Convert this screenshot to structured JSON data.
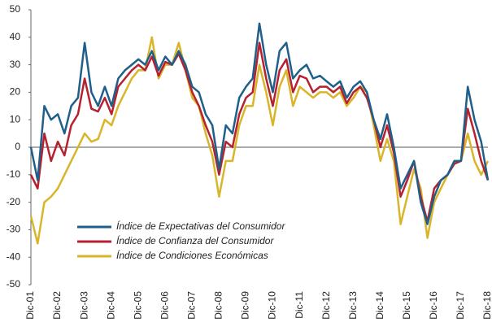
{
  "chart_data": {
    "type": "line",
    "categories": [
      "Dic-01",
      null,
      null,
      null,
      "Dic-02",
      null,
      null,
      null,
      "Dic-03",
      null,
      null,
      null,
      "Dic-04",
      null,
      null,
      null,
      "Dic-05",
      null,
      null,
      null,
      "Dic-06",
      null,
      null,
      null,
      "Dic-07",
      null,
      null,
      null,
      "Dic-08",
      null,
      null,
      null,
      "Dic-09",
      null,
      null,
      null,
      "Dic-10",
      null,
      null,
      null,
      "Dic-11",
      null,
      null,
      null,
      "Dic-12",
      null,
      null,
      null,
      "Dic-13",
      null,
      null,
      null,
      "Dic-14",
      null,
      null,
      null,
      "Dic-15",
      null,
      null,
      null,
      "Dic-16",
      null,
      null,
      null,
      "Dic-17",
      null,
      null,
      null,
      "Dic-18"
    ],
    "series": [
      {
        "name": "Índice de Expectativas del Consumidor",
        "color": "#1f5f8b",
        "values": [
          0,
          -12,
          15,
          10,
          12,
          5,
          15,
          18,
          38,
          20,
          15,
          22,
          15,
          25,
          28,
          30,
          32,
          30,
          35,
          28,
          33,
          30,
          35,
          30,
          22,
          20,
          12,
          8,
          -8,
          8,
          5,
          18,
          22,
          25,
          45,
          30,
          20,
          35,
          38,
          25,
          28,
          30,
          25,
          26,
          24,
          22,
          24,
          18,
          22,
          24,
          20,
          10,
          3,
          12,
          0,
          -15,
          -10,
          -5,
          -20,
          -28,
          -18,
          -12,
          -10,
          -5,
          -5,
          22,
          10,
          2,
          -12
        ]
      },
      {
        "name": "Índice de Confianza del Consumidor",
        "color": "#b5212e",
        "values": [
          -10,
          -15,
          5,
          -5,
          2,
          -3,
          8,
          12,
          25,
          14,
          13,
          18,
          12,
          22,
          25,
          28,
          30,
          28,
          33,
          26,
          31,
          30,
          34,
          28,
          20,
          15,
          8,
          2,
          -10,
          2,
          0,
          12,
          18,
          20,
          38,
          25,
          15,
          28,
          32,
          20,
          26,
          25,
          20,
          22,
          22,
          20,
          22,
          16,
          20,
          22,
          18,
          10,
          0,
          8,
          -2,
          -18,
          -12,
          -5,
          -18,
          -27,
          -15,
          -12,
          -10,
          -6,
          -5,
          14,
          5,
          -5,
          -12
        ]
      },
      {
        "name": "Índice de Condiciones Económicas",
        "color": "#d9b52a",
        "values": [
          -25,
          -35,
          -20,
          -18,
          -15,
          -10,
          -5,
          0,
          5,
          2,
          3,
          10,
          8,
          15,
          20,
          25,
          28,
          28,
          40,
          25,
          30,
          30,
          38,
          28,
          18,
          15,
          5,
          -3,
          -18,
          -5,
          -5,
          8,
          15,
          15,
          30,
          20,
          8,
          22,
          28,
          15,
          22,
          20,
          18,
          20,
          20,
          18,
          20,
          15,
          18,
          22,
          20,
          8,
          -5,
          3,
          -5,
          -28,
          -18,
          -8,
          -15,
          -33,
          -20,
          -15,
          -10,
          -5,
          -5,
          5,
          -5,
          -10,
          -5
        ]
      }
    ],
    "ylim": [
      -50,
      50
    ],
    "yticks": [
      -50,
      -40,
      -30,
      -20,
      -10,
      0,
      10,
      20,
      30,
      40,
      50
    ],
    "grid": false
  }
}
